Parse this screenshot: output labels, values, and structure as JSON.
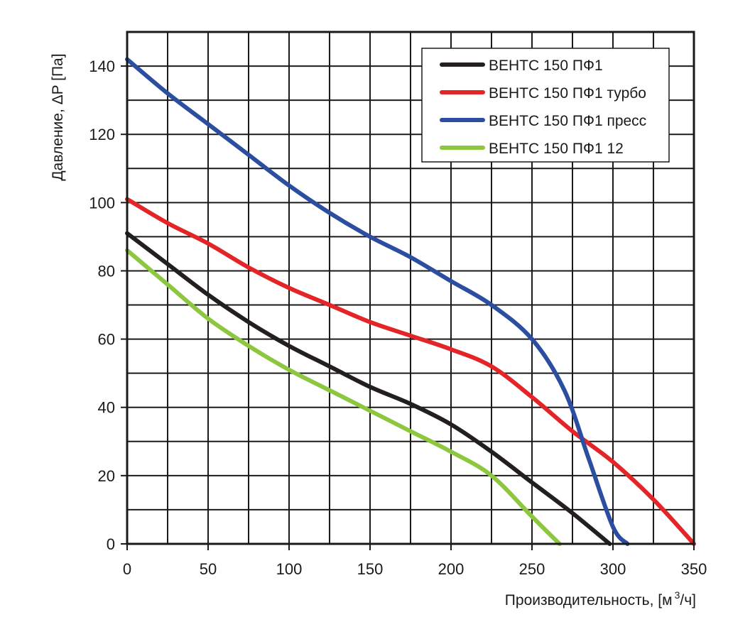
{
  "chart_data": {
    "type": "line",
    "xlabel": "Производительность, [м",
    "xlabel_sup": "3",
    "xlabel_tail": "/ч]",
    "ylabel": "Давление, ΔP [Па]",
    "xlim": [
      0,
      350
    ],
    "ylim": [
      0,
      150
    ],
    "x_minor_step": 25,
    "y_minor_step": 10,
    "x_ticks": [
      0,
      50,
      100,
      150,
      200,
      250,
      300,
      350
    ],
    "x_tick_labels": [
      "0",
      "50",
      "100",
      "150",
      "200",
      "250",
      "300",
      "350"
    ],
    "y_ticks": [
      0,
      20,
      40,
      60,
      80,
      100,
      120,
      140
    ],
    "y_tick_labels": [
      "0",
      "20",
      "40",
      "60",
      "80",
      "100",
      "120",
      "140"
    ],
    "grid": true,
    "legend_position": "top-right",
    "series": [
      {
        "name": "ВЕНТС 150 ПФ1",
        "color": "#231f20",
        "points": [
          [
            0,
            91
          ],
          [
            25,
            82
          ],
          [
            50,
            73
          ],
          [
            75,
            65
          ],
          [
            100,
            58
          ],
          [
            125,
            52
          ],
          [
            150,
            46
          ],
          [
            175,
            41
          ],
          [
            200,
            35
          ],
          [
            225,
            27
          ],
          [
            250,
            18
          ],
          [
            275,
            9
          ],
          [
            298,
            0
          ]
        ]
      },
      {
        "name": "ВЕНТС 150 ПФ1 турбо",
        "color": "#e42528",
        "points": [
          [
            0,
            101
          ],
          [
            25,
            94
          ],
          [
            50,
            88
          ],
          [
            75,
            81
          ],
          [
            100,
            75
          ],
          [
            125,
            70
          ],
          [
            150,
            65
          ],
          [
            175,
            61
          ],
          [
            200,
            57
          ],
          [
            225,
            52
          ],
          [
            250,
            43
          ],
          [
            275,
            33
          ],
          [
            300,
            24
          ],
          [
            325,
            13
          ],
          [
            350,
            0
          ]
        ]
      },
      {
        "name": "ВЕНТС 150 ПФ1 пресс",
        "color": "#2b4ea0",
        "points": [
          [
            0,
            142
          ],
          [
            25,
            132
          ],
          [
            50,
            123
          ],
          [
            75,
            114
          ],
          [
            100,
            105
          ],
          [
            125,
            97
          ],
          [
            150,
            90
          ],
          [
            175,
            84
          ],
          [
            200,
            77
          ],
          [
            225,
            70
          ],
          [
            250,
            60
          ],
          [
            270,
            45
          ],
          [
            285,
            25
          ],
          [
            300,
            5
          ],
          [
            309,
            0
          ]
        ]
      },
      {
        "name": "ВЕНТС 150 ПФ1 12",
        "color": "#8dc63f",
        "points": [
          [
            0,
            86
          ],
          [
            25,
            76
          ],
          [
            50,
            66
          ],
          [
            75,
            58
          ],
          [
            100,
            51
          ],
          [
            125,
            45
          ],
          [
            150,
            39
          ],
          [
            175,
            33
          ],
          [
            200,
            27
          ],
          [
            225,
            20
          ],
          [
            250,
            8
          ],
          [
            267,
            0
          ]
        ]
      }
    ]
  }
}
